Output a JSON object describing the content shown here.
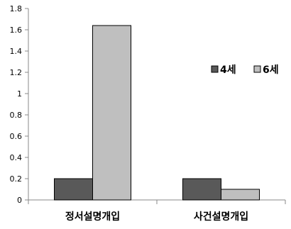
{
  "chart_data": {
    "type": "bar",
    "categories": [
      "정서설명개입",
      "사건설명개입"
    ],
    "series": [
      {
        "name": "4세",
        "values": [
          0.2,
          0.2
        ],
        "color": "#595959"
      },
      {
        "name": "6세",
        "values": [
          1.64,
          0.1
        ],
        "color": "#bfbfbf"
      }
    ],
    "ylim": [
      0,
      1.8
    ],
    "yticks": [
      "0",
      "0.2",
      "0.4",
      "0.6",
      "0.8",
      "1",
      "1.2",
      "1.4",
      "1.6",
      "1.8"
    ],
    "grid": false,
    "legend_position": "right"
  }
}
